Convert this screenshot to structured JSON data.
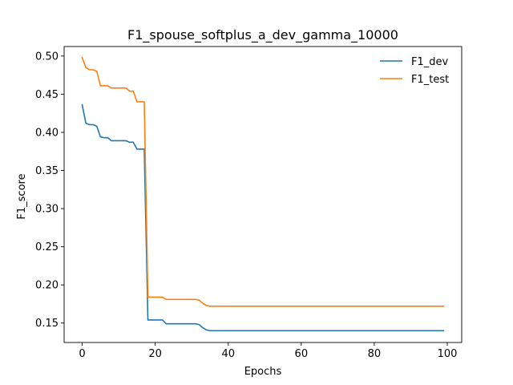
{
  "chart_data": {
    "type": "line",
    "title": "F1_spouse_softplus_a_dev_gamma_10000",
    "xlabel": "Epochs",
    "ylabel": "F1_score",
    "xlim": [
      -4.95,
      103.95
    ],
    "ylim": [
      0.1245,
      0.5125
    ],
    "xticks": [
      0,
      20,
      40,
      60,
      80,
      100
    ],
    "yticks": [
      0.15,
      0.2,
      0.25,
      0.3,
      0.35,
      0.4,
      0.45,
      0.5
    ],
    "ytick_labels": [
      "0.15",
      "0.20",
      "0.25",
      "0.30",
      "0.35",
      "0.40",
      "0.45",
      "0.50"
    ],
    "grid": false,
    "legend_position": "top-right",
    "series": [
      {
        "name": "F1_dev",
        "color": "#1f77b4",
        "x": [
          0,
          1,
          2,
          3,
          4,
          5,
          6,
          7,
          8,
          9,
          10,
          11,
          12,
          13,
          14,
          15,
          16,
          17,
          18,
          19,
          20,
          21,
          22,
          23,
          24,
          25,
          26,
          27,
          28,
          29,
          30,
          31,
          32,
          33,
          34,
          35,
          36,
          37,
          38,
          39,
          40,
          41,
          42,
          43,
          44,
          45,
          46,
          47,
          48,
          49,
          50,
          51,
          52,
          53,
          54,
          55,
          56,
          57,
          58,
          59,
          60,
          61,
          62,
          63,
          64,
          65,
          66,
          67,
          68,
          69,
          70,
          71,
          72,
          73,
          74,
          75,
          76,
          77,
          78,
          79,
          80,
          81,
          82,
          83,
          84,
          85,
          86,
          87,
          88,
          89,
          90,
          91,
          92,
          93,
          94,
          95,
          96,
          97,
          98,
          99
        ],
        "values": [
          0.436,
          0.412,
          0.41,
          0.41,
          0.408,
          0.394,
          0.393,
          0.393,
          0.389,
          0.389,
          0.389,
          0.389,
          0.389,
          0.387,
          0.387,
          0.378,
          0.378,
          0.378,
          0.154,
          0.154,
          0.154,
          0.154,
          0.154,
          0.149,
          0.149,
          0.149,
          0.149,
          0.149,
          0.149,
          0.149,
          0.149,
          0.149,
          0.148,
          0.144,
          0.141,
          0.14,
          0.14,
          0.14,
          0.14,
          0.14,
          0.14,
          0.14,
          0.14,
          0.14,
          0.14,
          0.14,
          0.14,
          0.14,
          0.14,
          0.14,
          0.14,
          0.14,
          0.14,
          0.14,
          0.14,
          0.14,
          0.14,
          0.14,
          0.14,
          0.14,
          0.14,
          0.14,
          0.14,
          0.14,
          0.14,
          0.14,
          0.14,
          0.14,
          0.14,
          0.14,
          0.14,
          0.14,
          0.14,
          0.14,
          0.14,
          0.14,
          0.14,
          0.14,
          0.14,
          0.14,
          0.14,
          0.14,
          0.14,
          0.14,
          0.14,
          0.14,
          0.14,
          0.14,
          0.14,
          0.14,
          0.14,
          0.14,
          0.14,
          0.14,
          0.14,
          0.14,
          0.14,
          0.14,
          0.14,
          0.14
        ]
      },
      {
        "name": "F1_test",
        "color": "#ff7f0e",
        "x": [
          0,
          1,
          2,
          3,
          4,
          5,
          6,
          7,
          8,
          9,
          10,
          11,
          12,
          13,
          14,
          15,
          16,
          17,
          18,
          19,
          20,
          21,
          22,
          23,
          24,
          25,
          26,
          27,
          28,
          29,
          30,
          31,
          32,
          33,
          34,
          35,
          36,
          37,
          38,
          39,
          40,
          41,
          42,
          43,
          44,
          45,
          46,
          47,
          48,
          49,
          50,
          51,
          52,
          53,
          54,
          55,
          56,
          57,
          58,
          59,
          60,
          61,
          62,
          63,
          64,
          65,
          66,
          67,
          68,
          69,
          70,
          71,
          72,
          73,
          74,
          75,
          76,
          77,
          78,
          79,
          80,
          81,
          82,
          83,
          84,
          85,
          86,
          87,
          88,
          89,
          90,
          91,
          92,
          93,
          94,
          95,
          96,
          97,
          98,
          99
        ],
        "values": [
          0.498,
          0.485,
          0.482,
          0.482,
          0.48,
          0.461,
          0.461,
          0.461,
          0.458,
          0.458,
          0.458,
          0.458,
          0.458,
          0.454,
          0.454,
          0.44,
          0.44,
          0.44,
          0.184,
          0.184,
          0.184,
          0.184,
          0.184,
          0.181,
          0.181,
          0.181,
          0.181,
          0.181,
          0.181,
          0.181,
          0.181,
          0.181,
          0.18,
          0.176,
          0.173,
          0.172,
          0.172,
          0.172,
          0.172,
          0.172,
          0.172,
          0.172,
          0.172,
          0.172,
          0.172,
          0.172,
          0.172,
          0.172,
          0.172,
          0.172,
          0.172,
          0.172,
          0.172,
          0.172,
          0.172,
          0.172,
          0.172,
          0.172,
          0.172,
          0.172,
          0.172,
          0.172,
          0.172,
          0.172,
          0.172,
          0.172,
          0.172,
          0.172,
          0.172,
          0.172,
          0.172,
          0.172,
          0.172,
          0.172,
          0.172,
          0.172,
          0.172,
          0.172,
          0.172,
          0.172,
          0.172,
          0.172,
          0.172,
          0.172,
          0.172,
          0.172,
          0.172,
          0.172,
          0.172,
          0.172,
          0.172,
          0.172,
          0.172,
          0.172,
          0.172,
          0.172,
          0.172,
          0.172,
          0.172,
          0.172
        ]
      }
    ]
  }
}
